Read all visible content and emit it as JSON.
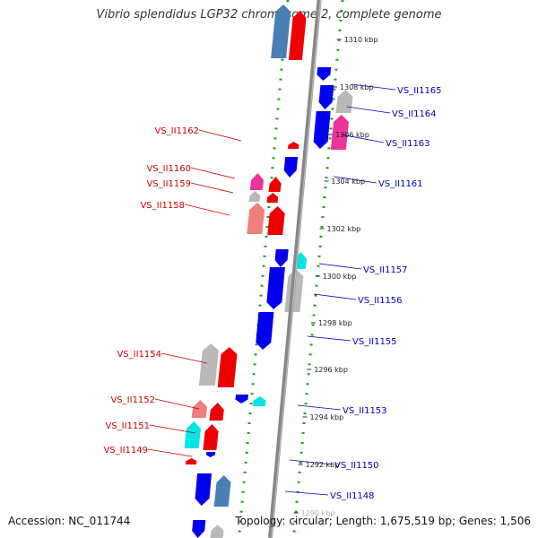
{
  "title": "Vibrio splendidus LGP32 chromosome 2, complete genome",
  "footer": {
    "accession": "Accession: NC_011744",
    "info": "Topology: circular; Length: 1,675,519 bp; Genes: 1,506"
  },
  "colors": {
    "forward_blue": "#0000ee",
    "steel_blue": "#4a7fb4",
    "red": "#ee0000",
    "gray": "#b9b9b9",
    "cyan": "#00e5e5",
    "magenta": "#ee3399",
    "pink": "#ef7f7f",
    "orange": "#f39b28",
    "backbone": "#888888",
    "dotted_track": "#1f9e1f",
    "right_label": "#0000bb",
    "left_label": "#cc0000"
  },
  "kbp_ticks": [
    "1310 kbp",
    "1308 kbp",
    "1306 kbp",
    "1304 kbp",
    "1302 kbp",
    "1300 kbp",
    "1298 kbp",
    "1296 kbp",
    "1294 kbp",
    "1292 kbp",
    "1290 kbp"
  ],
  "right_labels": [
    "VS_II1165",
    "VS_II1164",
    "VS_II1163",
    "VS_II1161",
    "VS_II1157",
    "VS_II1156",
    "VS_II1155",
    "VS_II1153",
    "VS_II1150",
    "VS_II1148"
  ],
  "left_labels": [
    "VS_II1162",
    "VS_II1160",
    "VS_II1159",
    "VS_II1158",
    "VS_II1154",
    "VS_II1152",
    "VS_II1151",
    "VS_II1149"
  ]
}
